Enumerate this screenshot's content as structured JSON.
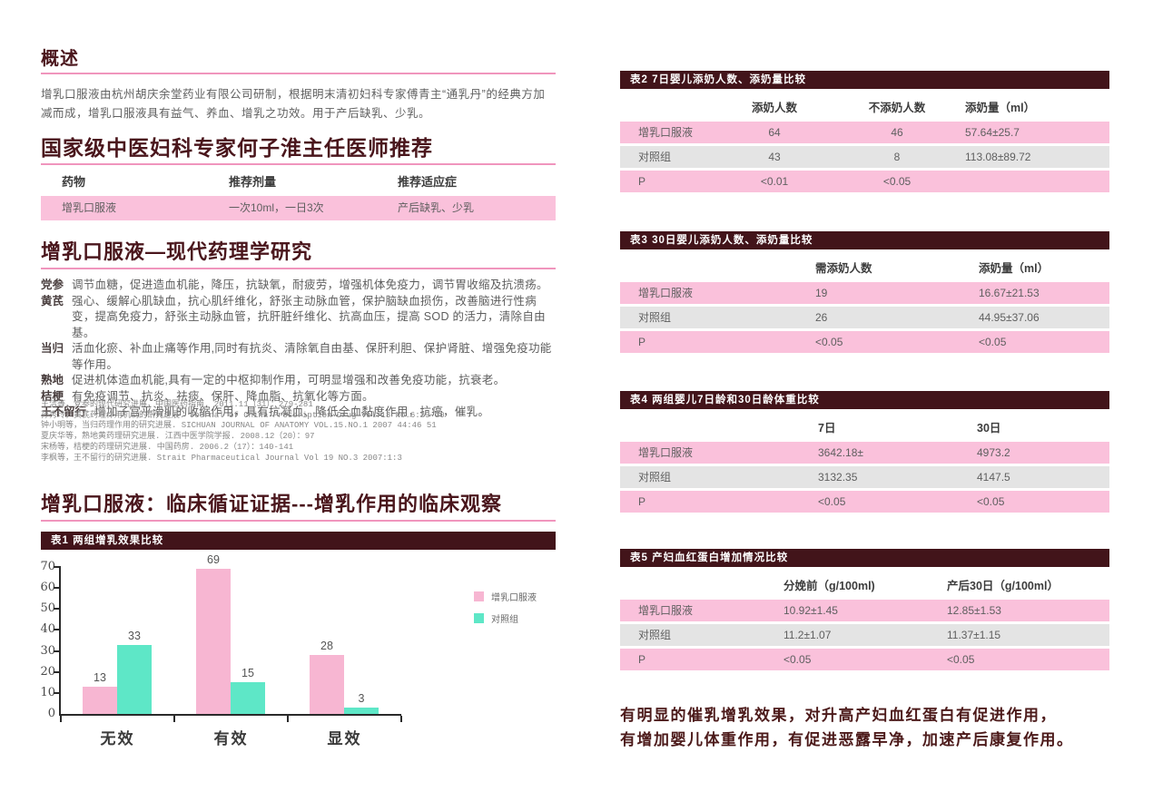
{
  "left": {
    "overview": {
      "title": "概述",
      "body": "增乳口服液由杭州胡庆余堂药业有限公司研制，根据明末清初妇科专家傅青主“通乳丹”的经典方加减而成，增乳口服液具有益气、养血、增乳之功效。用于产后缺乳、少乳。"
    },
    "recommend": {
      "title": "国家级中医妇科专家何子淮主任医师推荐",
      "table": {
        "headers": [
          "药物",
          "推荐剂量",
          "推荐适应症"
        ],
        "row": [
          "增乳口服液",
          "一次10ml，一日3次",
          "产后缺乳、少乳"
        ]
      }
    },
    "pharmacology": {
      "title": "增乳口服液—现代药理学研究",
      "herbs": [
        {
          "name": "党参",
          "desc": "调节血糖，促进造血机能，降压，抗缺氧，耐疲劳，增强机体免疫力，调节胃收缩及抗溃疡。"
        },
        {
          "name": "黄芪",
          "desc": "强心、缓解心肌缺血，抗心肌纤维化，舒张主动脉血管，保护脑缺血损伤，改善脑进行性病变，提高免疫力，舒张主动脉血管，抗肝脏纤维化、抗高血压，提高 SOD 的活力，清除自由基。"
        },
        {
          "name": "当归",
          "desc": "活血化瘀、补血止痛等作用,同时有抗炎、清除氧自由基、保肝利胆、保护肾脏、增强免疫功能等作用。"
        },
        {
          "name": "熟地",
          "desc": "促进机体造血机能,具有一定的中枢抑制作用，可明显增强和改善免疫功能，抗衰老。"
        },
        {
          "name": "桔梗",
          "desc": "有免疫调节、抗炎、祛痰、保肝、降血脂、抗氧化等方面。"
        },
        {
          "name": "王不留行",
          "desc": "增加子宫平滑肌的收缩作用，具有抗凝血、降低全血黏度作用，抗癌，催乳。"
        }
      ],
      "references": [
        "王洁等，党参的现代研究进展，中国医药指南. 2011.11（31）：279-281",
        "孙秀玲，黄芪药理作用机制的研究进展. Journal of China Prescription Drug Vol.13 No.6:29-30",
        "钟小明等，当归药理作用的研究进展. SICHUAN JOURNAL OF ANATOMY VOL.15.NO.1 2007 44:46 51",
        "夏庆华等，熟地黄药理研究进展. 江西中医学院学报. 2008.12（20）：97",
        "宋杨等，桔梗的药理研究进展. 中国药房. 2006.2（17）：140-141",
        "李枫等，王不留行的研究进展. Strait Pharmaceutical Journal Vol 19 NO.3 2007:1:3"
      ]
    },
    "clinical": {
      "title": "增乳口服液：临床循证证据---增乳作用的临床观察"
    }
  },
  "chart_data": {
    "type": "bar",
    "title": "表1 两组增乳效果比较",
    "categories": [
      "无效",
      "有效",
      "显效"
    ],
    "series": [
      {
        "name": "增乳口服液",
        "color": "#f7b6d2",
        "values": [
          13,
          69,
          28
        ]
      },
      {
        "name": "对照组",
        "color": "#5ee7c7",
        "values": [
          33,
          15,
          3
        ]
      }
    ],
    "xlabel": "",
    "ylabel": "",
    "ylim": [
      0,
      70
    ],
    "ytick_step": 10,
    "grid": false,
    "legend_position": "right"
  },
  "right": {
    "tables": [
      {
        "title": "表2 7日婴儿添奶人数、添奶量比较",
        "headers": [
          "",
          "添奶人数",
          "不添奶人数",
          "添奶量（ml）"
        ],
        "rows": [
          [
            "增乳口服液",
            "64",
            "46",
            "57.64±25.7"
          ],
          [
            "对照组",
            "43",
            "8",
            "113.08±89.72"
          ],
          [
            "P",
            "<0.01",
            "<0.05",
            ""
          ]
        ]
      },
      {
        "title": "表3 30日婴儿添奶人数、添奶量比较",
        "headers": [
          "",
          "需添奶人数",
          "添奶量（ml）"
        ],
        "rows": [
          [
            "增乳口服液",
            "19",
            "16.67±21.53"
          ],
          [
            "对照组",
            "26",
            "44.95±37.06"
          ],
          [
            "P",
            "<0.05",
            "<0.05"
          ]
        ]
      },
      {
        "title": "表4 两组婴儿7日龄和30日龄体重比较",
        "headers": [
          "",
          "7日",
          "30日"
        ],
        "rows": [
          [
            "增乳口服液",
            "3642.18±",
            "4973.2"
          ],
          [
            "对照组",
            "3132.35",
            "4147.5"
          ],
          [
            "P",
            "<0.05",
            "<0.05"
          ]
        ]
      },
      {
        "title": "表5 产妇血红蛋白增加情况比较",
        "headers": [
          "",
          "分娩前（g/100ml)",
          "产后30日（g/100ml）"
        ],
        "rows": [
          [
            "增乳口服液",
            "10.92±1.45",
            "12.85±1.53"
          ],
          [
            "对照组",
            "11.2±1.07",
            "11.37±1.15"
          ],
          [
            "P",
            "<0.05",
            "<0.05"
          ]
        ]
      }
    ],
    "conclusion_lines": [
      "有明显的催乳增乳效果，对升高产妇血红蛋白有促进作用，",
      "有增加婴儿体重作用，有促进恶露早净，加速产后康复作用。"
    ]
  }
}
